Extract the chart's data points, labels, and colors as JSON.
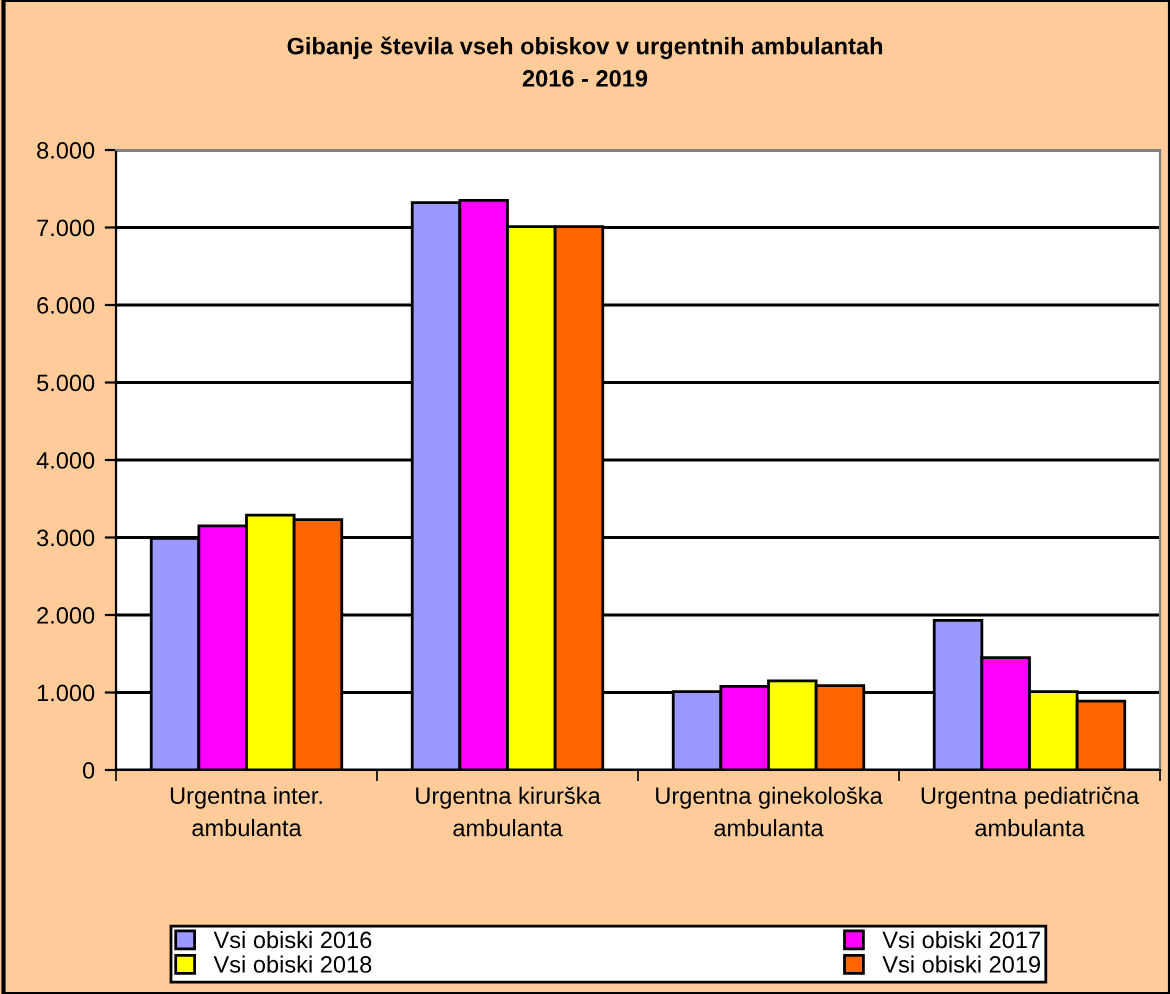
{
  "chart_data": {
    "type": "bar",
    "title": "Gibanje števila vseh obiskov v urgentnih ambulantah\n2016 - 2019",
    "categories": [
      "Urgentna inter.\nambulanta",
      "Urgentna kirurška\nambulanta",
      "Urgentna ginekološka\nambulanta",
      "Urgentna pediatrična\nambulanta"
    ],
    "series": [
      {
        "name": "Vsi obiski 2016",
        "color": "#9999ff",
        "values": [
          2990,
          7320,
          1010,
          1930
        ]
      },
      {
        "name": "Vsi obiski 2017",
        "color": "#ff00ff",
        "values": [
          3150,
          7350,
          1080,
          1450
        ]
      },
      {
        "name": "Vsi obiski 2018",
        "color": "#ffff00",
        "values": [
          3290,
          7010,
          1150,
          1010
        ]
      },
      {
        "name": "Vsi obiski 2019",
        "color": "#ff6600",
        "values": [
          3230,
          7010,
          1090,
          890
        ]
      }
    ],
    "ylim": [
      0,
      8000
    ],
    "yticks": [
      0,
      {
        "value": 1000,
        "label": "1.000"
      },
      {
        "value": 2000,
        "label": "2.000"
      },
      {
        "value": 3000,
        "label": "3.000"
      },
      {
        "value": 4000,
        "label": "4.000"
      },
      {
        "value": 5000,
        "label": "5.000"
      },
      {
        "value": 6000,
        "label": "6.000"
      },
      {
        "value": 7000,
        "label": "7.000"
      },
      {
        "value": 8000,
        "label": "8.000"
      }
    ],
    "grid": "y",
    "legend": "bottom"
  }
}
